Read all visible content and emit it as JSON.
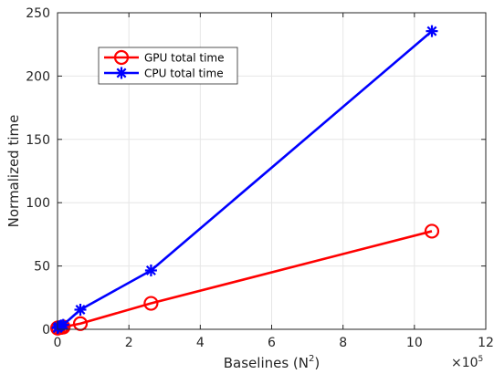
{
  "chart_data": {
    "type": "line",
    "title": "",
    "xlabel": "Baselines (N",
    "xlabel_superscript": "2",
    "xlabel_suffix": ")",
    "ylabel": "Normalized time",
    "x_exponent_base": "×10",
    "x_exponent_power": "5",
    "xlim": [
      0,
      12
    ],
    "ylim": [
      0,
      250
    ],
    "x_ticks": [
      "0",
      "2",
      "4",
      "6",
      "8",
      "10",
      "12"
    ],
    "y_ticks": [
      "0",
      "50",
      "100",
      "150",
      "200",
      "250"
    ],
    "grid": true,
    "legend_position": "top-left",
    "series": [
      {
        "name": "GPU total time",
        "color": "#ff0000",
        "marker": "circle",
        "x": [
          0.0025,
          0.0064,
          0.0256,
          0.1024,
          0.16,
          0.64,
          2.62,
          10.49
        ],
        "y": [
          1,
          1,
          1.2,
          1.5,
          1.8,
          4.5,
          20.5,
          77.5
        ]
      },
      {
        "name": "CPU total time",
        "color": "#0000ff",
        "marker": "asterisk",
        "x": [
          0.0025,
          0.0064,
          0.0256,
          0.1024,
          0.16,
          0.64,
          2.62,
          10.49
        ],
        "y": [
          1,
          1.2,
          2,
          3,
          3.5,
          15.5,
          46.5,
          235.5
        ]
      }
    ]
  }
}
